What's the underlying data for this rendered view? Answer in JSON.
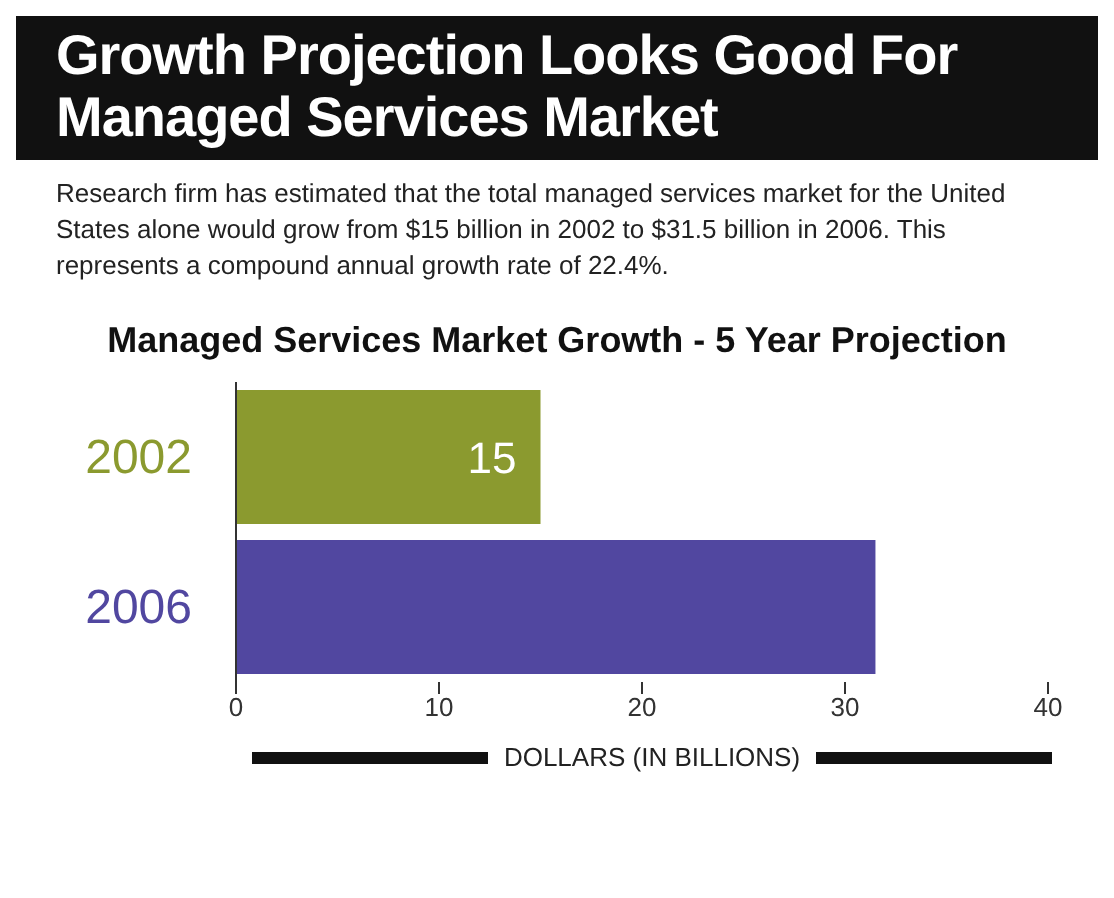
{
  "chart_data": {
    "type": "bar",
    "orientation": "horizontal",
    "title": "Growth Projection Looks Good For Managed Services Market",
    "subtitle": "Research firm has estimated that the total managed services market for the United States alone would grow from $15 billion in 2002 to $31.5 billion in 2006. This represents a compound annual growth rate of 22.4%.",
    "annotations": [
      "Managed Services Market Growth - 5 Year Projection"
    ],
    "xlabel": "DOLLARS (IN BILLIONS)",
    "categories": [
      "2002",
      "2006"
    ],
    "values": [
      15,
      31.5
    ],
    "colors": [
      "#8b9a2f",
      "#5147a0"
    ],
    "value_labels": [
      "15",
      null
    ],
    "xlim": [
      0,
      40
    ],
    "xticks": [
      0,
      10,
      20,
      30,
      40
    ]
  }
}
